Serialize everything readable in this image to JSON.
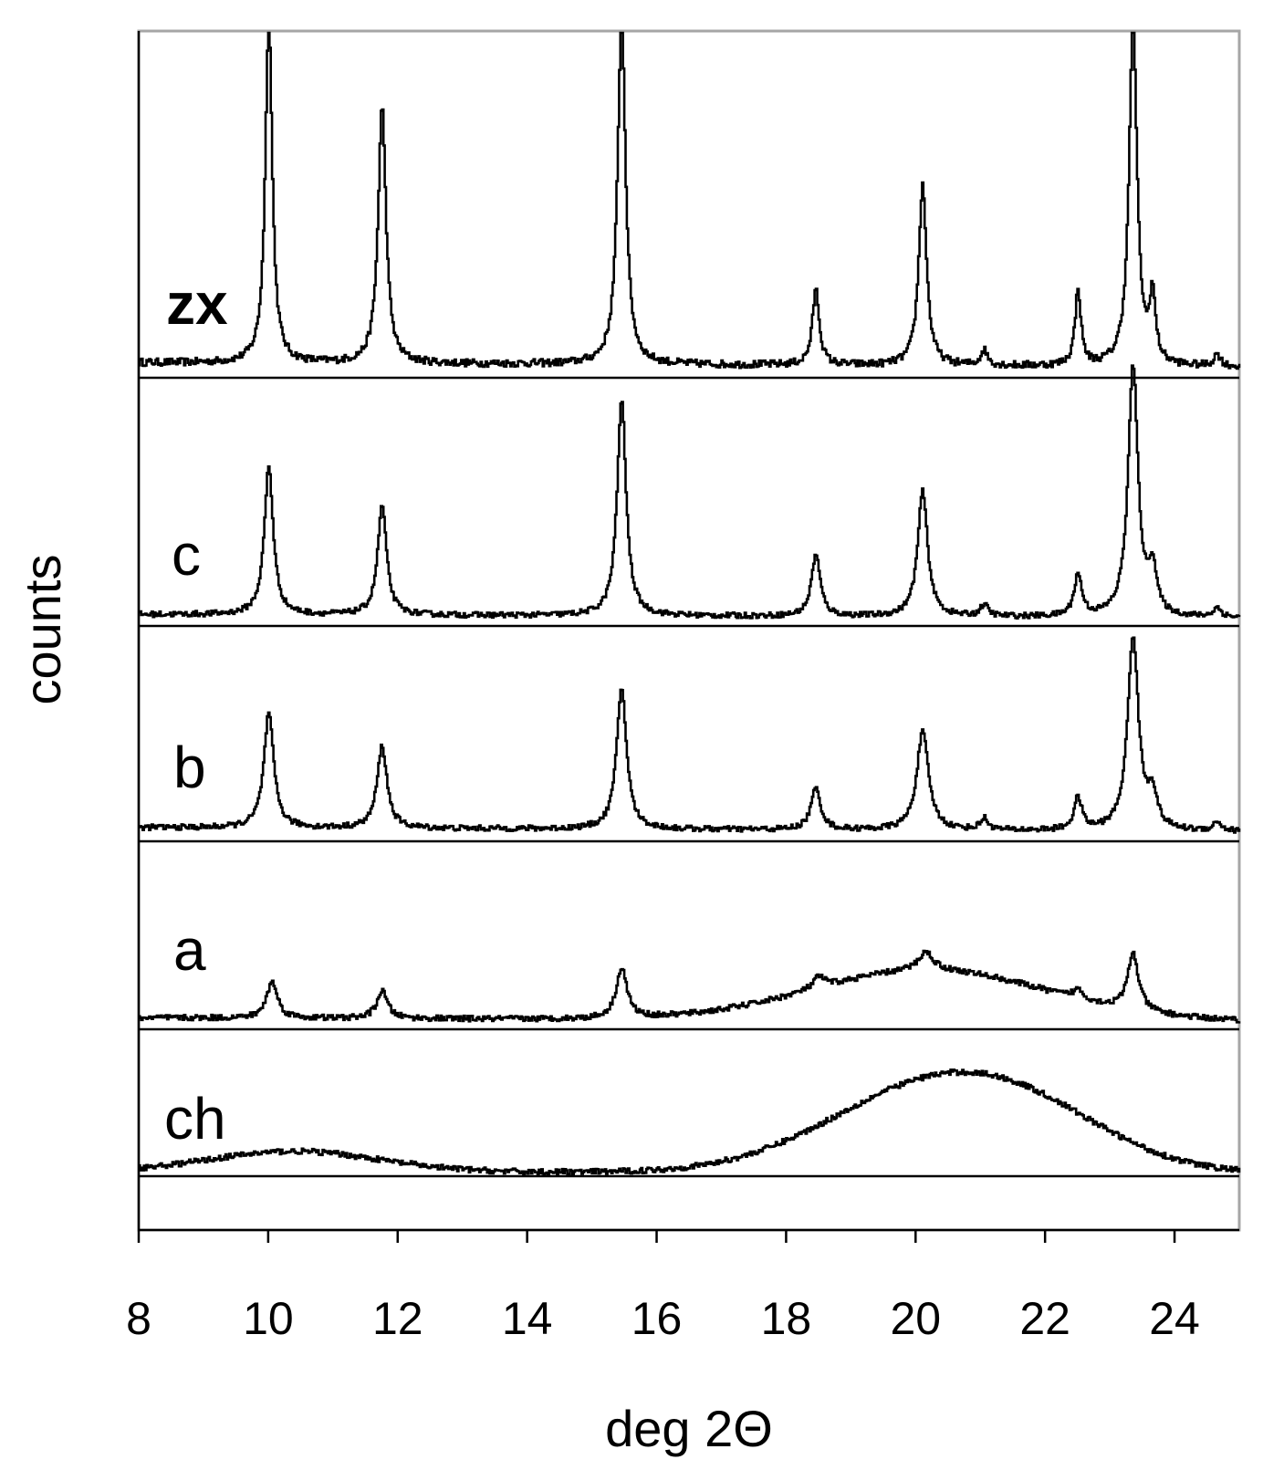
{
  "chart_data": {
    "type": "line",
    "title": "",
    "xlabel": "deg 2Θ",
    "ylabel": "counts",
    "xlim": [
      8,
      25
    ],
    "x_ticks": [
      8,
      10,
      12,
      14,
      16,
      18,
      20,
      22,
      24
    ],
    "x_tick_labels": [
      "8",
      "10",
      "12",
      "14",
      "16",
      "18",
      "20",
      "22",
      "24"
    ],
    "grid": false,
    "layout": "stacked-offset",
    "series": [
      {
        "name": "zx",
        "label_bold": true,
        "background": 0.05,
        "peaks": [
          {
            "x": 10.0,
            "height": 1.15,
            "width": 0.07
          },
          {
            "x": 11.75,
            "height": 0.85,
            "width": 0.08
          },
          {
            "x": 15.45,
            "height": 1.15,
            "width": 0.08
          },
          {
            "x": 18.45,
            "height": 0.25,
            "width": 0.07
          },
          {
            "x": 20.1,
            "height": 0.6,
            "width": 0.08
          },
          {
            "x": 21.05,
            "height": 0.05,
            "width": 0.07
          },
          {
            "x": 22.5,
            "height": 0.25,
            "width": 0.06
          },
          {
            "x": 23.35,
            "height": 1.15,
            "width": 0.08
          },
          {
            "x": 23.65,
            "height": 0.22,
            "width": 0.06
          },
          {
            "x": 24.65,
            "height": 0.04,
            "width": 0.07
          }
        ]
      },
      {
        "name": "c",
        "label_bold": false,
        "background": 0.05,
        "peaks": [
          {
            "x": 10.0,
            "height": 0.65,
            "width": 0.09
          },
          {
            "x": 11.75,
            "height": 0.48,
            "width": 0.09
          },
          {
            "x": 15.45,
            "height": 0.95,
            "width": 0.09
          },
          {
            "x": 18.45,
            "height": 0.27,
            "width": 0.09
          },
          {
            "x": 20.1,
            "height": 0.55,
            "width": 0.1
          },
          {
            "x": 21.05,
            "height": 0.05,
            "width": 0.08
          },
          {
            "x": 22.5,
            "height": 0.18,
            "width": 0.08
          },
          {
            "x": 23.35,
            "height": 1.1,
            "width": 0.1
          },
          {
            "x": 23.65,
            "height": 0.2,
            "width": 0.08
          },
          {
            "x": 24.65,
            "height": 0.04,
            "width": 0.08
          }
        ]
      },
      {
        "name": "b",
        "label_bold": false,
        "background": 0.06,
        "peaks": [
          {
            "x": 10.0,
            "height": 0.5,
            "width": 0.1
          },
          {
            "x": 11.75,
            "height": 0.36,
            "width": 0.1
          },
          {
            "x": 15.45,
            "height": 0.62,
            "width": 0.1
          },
          {
            "x": 18.45,
            "height": 0.18,
            "width": 0.1
          },
          {
            "x": 20.1,
            "height": 0.43,
            "width": 0.12
          },
          {
            "x": 21.05,
            "height": 0.05,
            "width": 0.08
          },
          {
            "x": 22.5,
            "height": 0.14,
            "width": 0.08
          },
          {
            "x": 23.35,
            "height": 0.85,
            "width": 0.11
          },
          {
            "x": 23.65,
            "height": 0.15,
            "width": 0.09
          },
          {
            "x": 24.65,
            "height": 0.04,
            "width": 0.08
          }
        ]
      },
      {
        "name": "a",
        "label_bold": false,
        "background": 0.05,
        "broad": [
          {
            "x": 20.2,
            "height": 0.22,
            "width": 1.8
          }
        ],
        "peaks": [
          {
            "x": 10.05,
            "height": 0.16,
            "width": 0.11
          },
          {
            "x": 11.75,
            "height": 0.12,
            "width": 0.11
          },
          {
            "x": 15.45,
            "height": 0.22,
            "width": 0.11
          },
          {
            "x": 18.5,
            "height": 0.05,
            "width": 0.12
          },
          {
            "x": 20.15,
            "height": 0.08,
            "width": 0.15
          },
          {
            "x": 22.5,
            "height": 0.04,
            "width": 0.1
          },
          {
            "x": 23.35,
            "height": 0.25,
            "width": 0.11
          }
        ]
      },
      {
        "name": "ch",
        "label_bold": false,
        "background": 0.02,
        "broad": [
          {
            "x": 10.4,
            "height": 0.09,
            "width": 1.3
          },
          {
            "x": 20.2,
            "height": 0.36,
            "width": 1.6
          },
          {
            "x": 21.9,
            "height": 0.15,
            "width": 1.3
          }
        ],
        "peaks": []
      }
    ]
  }
}
